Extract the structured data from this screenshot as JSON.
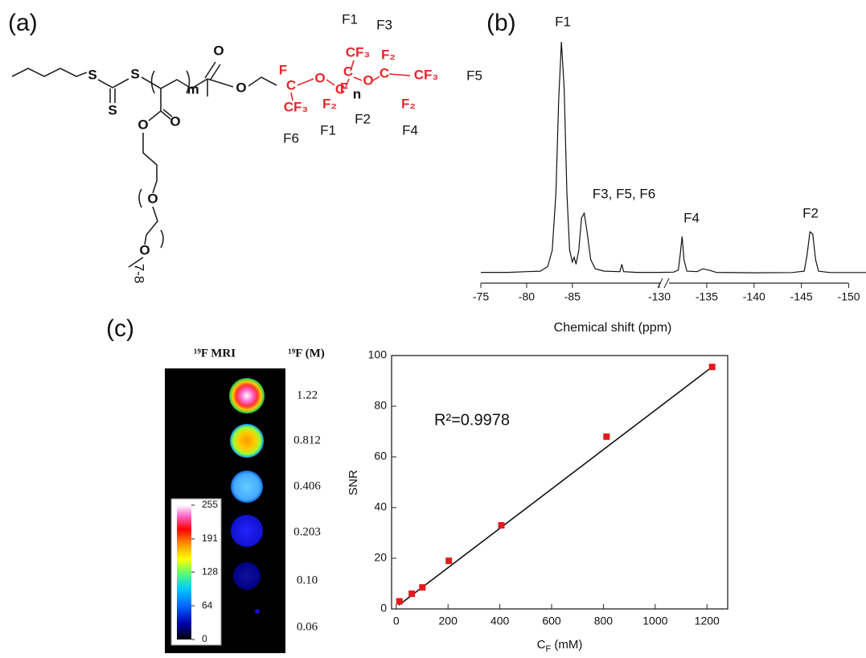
{
  "panel_labels": [
    "(a)",
    "(b)",
    "(c)"
  ],
  "structure": {
    "black_atoms": [
      "S",
      "S",
      "S",
      "m",
      "O",
      "O",
      "O",
      "O",
      "O",
      "O",
      "n",
      "7-8"
    ],
    "red_atoms": [
      "F",
      "C",
      "CF₃",
      "O",
      "C",
      "F₂",
      "CF₃",
      "C",
      "F",
      "O",
      "F₂",
      "C",
      "CF₃",
      "F₂"
    ],
    "group_labels": [
      "F1",
      "F3",
      "F5",
      "F6",
      "F1",
      "F2",
      "F4"
    ]
  },
  "mri": {
    "headers": [
      "¹⁹F MRI",
      "¹⁹F (M)"
    ],
    "concentrations": [
      "1.22",
      "0.812",
      "0.406",
      "0.203",
      "0.10",
      "0.06"
    ],
    "colorbar_ticks": [
      255,
      191,
      128,
      64,
      0
    ],
    "clim": [
      0,
      255
    ]
  },
  "chart_data": [
    {
      "type": "line",
      "x_label": "Chemical shift (ppm)",
      "annotations": [
        "F1",
        "F3, F5, F6",
        "F4",
        "F2"
      ],
      "ylim": [
        0,
        100
      ],
      "xticks": [
        -75,
        -80,
        -85,
        -130,
        -135,
        -140,
        -145,
        -150
      ],
      "color": "#111111",
      "segments": [
        {
          "xlim": [
            -75,
            -94.5
          ],
          "x": [
            -75,
            -78,
            -80,
            -81.5,
            -82.3,
            -82.8,
            -83.2,
            -83.5,
            -83.8,
            -84.1,
            -84.4,
            -84.7,
            -85,
            -85.2,
            -85.4,
            -85.7,
            -86,
            -86.3,
            -86.6,
            -87,
            -87.5,
            -88.5,
            -90.2,
            -90.4,
            -90.6,
            -92,
            -94.5
          ],
          "values": [
            0.5,
            0.5,
            0.8,
            1,
            3,
            10,
            35,
            75,
            100,
            80,
            35,
            10,
            5,
            7,
            4,
            10,
            24,
            26,
            18,
            6,
            2,
            1,
            0.8,
            4,
            0.8,
            0.5,
            0.5
          ]
        },
        {
          "xlim": [
            -130,
            -152.5
          ],
          "x": [
            -130,
            -131.5,
            -132,
            -132.2,
            -132.4,
            -132.6,
            -132.9,
            -134,
            -134.6,
            -135.2,
            -136,
            -140,
            -144,
            -145.3,
            -145.6,
            -145.9,
            -146.2,
            -146.5,
            -146.8,
            -148,
            -152.5
          ],
          "values": [
            0.5,
            0.6,
            1.5,
            8,
            16,
            6,
            1,
            0.8,
            2,
            1.5,
            0.5,
            0.3,
            0.4,
            1,
            8,
            18,
            17,
            6,
            1,
            0.4,
            0.4
          ]
        }
      ]
    },
    {
      "type": "scatter",
      "y_label": "SNR",
      "x_label": {
        "symbol": "C",
        "subscript": "F",
        "unit": " (mM)"
      },
      "annotation": "R²=0.9978",
      "x": [
        12.2,
        60,
        101,
        203,
        406,
        812,
        1220
      ],
      "values": [
        3,
        6,
        8.5,
        19,
        33,
        68,
        95.5
      ],
      "color": "#e31a1c",
      "fit": {
        "x": [
          10,
          1220
        ],
        "values": [
          1.5,
          95.5
        ],
        "color": "#111111"
      },
      "xlim": [
        -18,
        1280
      ],
      "xticks": [
        0,
        200,
        400,
        600,
        800,
        1000,
        1200
      ],
      "ylim": [
        0,
        100
      ],
      "yticks": [
        0,
        20,
        40,
        60,
        80,
        100
      ]
    }
  ]
}
